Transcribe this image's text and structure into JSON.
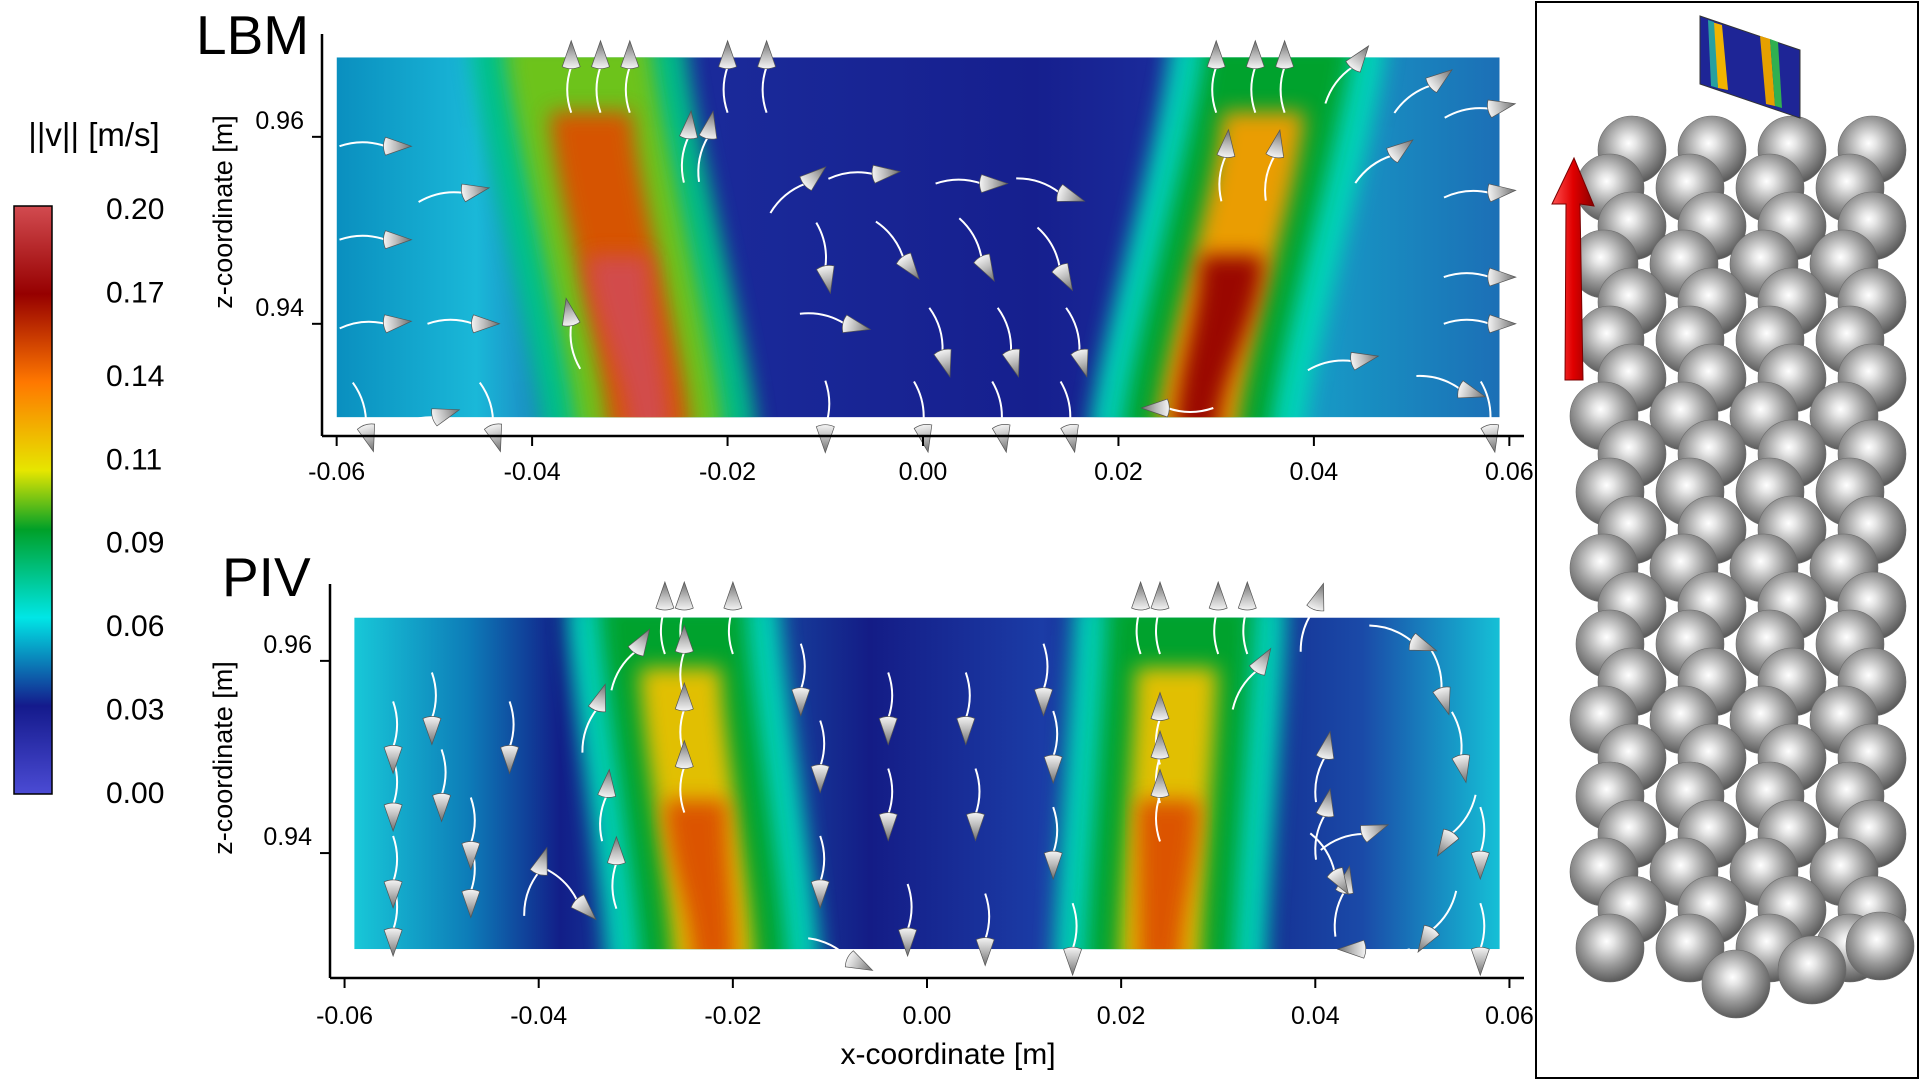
{
  "chart_data": [
    {
      "type": "heatmap",
      "panel_label": "LBM",
      "xlabel": "",
      "ylabel": "z-coordinate [m]",
      "xlim": [
        -0.0615,
        0.0615
      ],
      "ylim": [
        0.928,
        0.971
      ],
      "field_extent": {
        "x": [
          -0.06,
          0.059
        ],
        "z": [
          0.93,
          0.9685
        ]
      },
      "x_ticks": [
        "-0.06",
        "-0.04",
        "-0.02",
        "0.00",
        "0.02",
        "0.04",
        "0.06"
      ],
      "x_tick_values": [
        -0.06,
        -0.04,
        -0.02,
        0.0,
        0.02,
        0.04,
        0.06
      ],
      "y_ticks": [
        "0.94",
        "0.96"
      ],
      "y_tick_values": [
        0.94,
        0.96
      ],
      "background_speed": 0.03,
      "jets": [
        {
          "x_bottom": -0.028,
          "x_top": -0.035,
          "peak_speed": 0.2,
          "halo_speed": 0.1
        },
        {
          "x_bottom": 0.028,
          "x_top": 0.036,
          "peak_speed": 0.17,
          "halo_speed": 0.09
        }
      ],
      "velocity_arrows": [
        {
          "x": -0.036,
          "z": 0.9675,
          "u": 0.0,
          "v": 1.0
        },
        {
          "x": -0.033,
          "z": 0.9675,
          "u": 0.0,
          "v": 1.0
        },
        {
          "x": -0.03,
          "z": 0.9675,
          "u": 0.0,
          "v": 1.0
        },
        {
          "x": -0.024,
          "z": 0.96,
          "u": 0.1,
          "v": 1.0
        },
        {
          "x": -0.022,
          "z": 0.96,
          "u": 0.2,
          "v": 1.0
        },
        {
          "x": -0.02,
          "z": 0.9675,
          "u": 0.0,
          "v": 1.0
        },
        {
          "x": -0.016,
          "z": 0.9675,
          "u": 0.0,
          "v": 1.0
        },
        {
          "x": -0.012,
          "z": 0.955,
          "u": 0.6,
          "v": 0.5
        },
        {
          "x": -0.005,
          "z": 0.956,
          "u": 1.0,
          "v": 0.1
        },
        {
          "x": 0.006,
          "z": 0.955,
          "u": 1.0,
          "v": 0.0
        },
        {
          "x": 0.014,
          "z": 0.954,
          "u": 0.9,
          "v": -0.3
        },
        {
          "x": -0.01,
          "z": 0.946,
          "u": 0.2,
          "v": -1.0
        },
        {
          "x": -0.002,
          "z": 0.947,
          "u": 0.6,
          "v": -0.8
        },
        {
          "x": 0.006,
          "z": 0.947,
          "u": 0.5,
          "v": -0.9
        },
        {
          "x": 0.014,
          "z": 0.946,
          "u": 0.5,
          "v": -0.9
        },
        {
          "x": -0.008,
          "z": 0.94,
          "u": 0.9,
          "v": -0.2
        },
        {
          "x": 0.002,
          "z": 0.937,
          "u": 0.3,
          "v": -1.0
        },
        {
          "x": 0.009,
          "z": 0.937,
          "u": 0.3,
          "v": -1.0
        },
        {
          "x": 0.016,
          "z": 0.937,
          "u": 0.3,
          "v": -1.0
        },
        {
          "x": -0.055,
          "z": 0.959,
          "u": 1.0,
          "v": 0.0
        },
        {
          "x": -0.047,
          "z": 0.954,
          "u": 1.0,
          "v": 0.2
        },
        {
          "x": -0.055,
          "z": 0.949,
          "u": 1.0,
          "v": 0.0
        },
        {
          "x": -0.055,
          "z": 0.94,
          "u": 1.0,
          "v": 0.1
        },
        {
          "x": -0.046,
          "z": 0.94,
          "u": 1.0,
          "v": 0.0
        },
        {
          "x": -0.036,
          "z": 0.94,
          "u": -0.2,
          "v": 1.0
        },
        {
          "x": -0.05,
          "z": 0.93,
          "u": 1.0,
          "v": 0.3
        },
        {
          "x": 0.03,
          "z": 0.9675,
          "u": 0.0,
          "v": 1.0
        },
        {
          "x": 0.034,
          "z": 0.9675,
          "u": 0.0,
          "v": 1.0
        },
        {
          "x": 0.037,
          "z": 0.9675,
          "u": 0.0,
          "v": 1.0
        },
        {
          "x": 0.031,
          "z": 0.958,
          "u": 0.1,
          "v": 1.0
        },
        {
          "x": 0.036,
          "z": 0.958,
          "u": 0.2,
          "v": 1.0
        },
        {
          "x": 0.044,
          "z": 0.9675,
          "u": 0.6,
          "v": 0.8
        },
        {
          "x": 0.052,
          "z": 0.9655,
          "u": 0.8,
          "v": 0.6
        },
        {
          "x": 0.058,
          "z": 0.963,
          "u": 1.0,
          "v": 0.2
        },
        {
          "x": 0.048,
          "z": 0.958,
          "u": 0.8,
          "v": 0.6
        },
        {
          "x": 0.058,
          "z": 0.954,
          "u": 1.0,
          "v": 0.1
        },
        {
          "x": 0.058,
          "z": 0.945,
          "u": 1.0,
          "v": 0.0
        },
        {
          "x": 0.058,
          "z": 0.94,
          "u": 1.0,
          "v": 0.0
        },
        {
          "x": 0.044,
          "z": 0.936,
          "u": 1.0,
          "v": 0.2
        },
        {
          "x": 0.055,
          "z": 0.933,
          "u": 1.0,
          "v": -0.3
        },
        {
          "x": 0.025,
          "z": 0.931,
          "u": -1.0,
          "v": 0.0
        },
        {
          "x": -0.057,
          "z": 0.929,
          "u": 0.3,
          "v": -1.0
        },
        {
          "x": -0.044,
          "z": 0.929,
          "u": 0.3,
          "v": -1.0
        },
        {
          "x": -0.01,
          "z": 0.929,
          "u": 0.0,
          "v": -1.0
        },
        {
          "x": 0.0,
          "z": 0.929,
          "u": 0.2,
          "v": -1.0
        },
        {
          "x": 0.008,
          "z": 0.929,
          "u": 0.2,
          "v": -1.0
        },
        {
          "x": 0.015,
          "z": 0.929,
          "u": 0.2,
          "v": -1.0
        },
        {
          "x": 0.058,
          "z": 0.929,
          "u": 0.2,
          "v": -1.0
        }
      ]
    },
    {
      "type": "heatmap",
      "panel_label": "PIV",
      "xlabel": "x-coordinate [m]",
      "ylabel": "z-coordinate [m]",
      "xlim": [
        -0.0615,
        0.0615
      ],
      "ylim": [
        0.927,
        0.968
      ],
      "field_extent": {
        "x": [
          -0.059,
          0.059
        ],
        "z": [
          0.93,
          0.9645
        ]
      },
      "x_ticks": [
        "-0.06",
        "-0.04",
        "-0.02",
        "0.00",
        "0.02",
        "0.04",
        "0.06"
      ],
      "x_tick_values": [
        -0.06,
        -0.04,
        -0.02,
        0.0,
        0.02,
        0.04,
        0.06
      ],
      "y_ticks": [
        "0.94",
        "0.96"
      ],
      "y_tick_values": [
        0.94,
        0.96
      ],
      "background_speed": 0.03,
      "jets": [
        {
          "x_bottom": -0.022,
          "x_top": -0.026,
          "peak_speed": 0.15,
          "halo_speed": 0.09
        },
        {
          "x_bottom": 0.024,
          "x_top": 0.026,
          "peak_speed": 0.15,
          "halo_speed": 0.09
        }
      ],
      "velocity_arrows": [
        {
          "x": -0.055,
          "z": 0.951,
          "u": 0.0,
          "v": -1.0
        },
        {
          "x": -0.055,
          "z": 0.945,
          "u": 0.0,
          "v": -1.0
        },
        {
          "x": -0.055,
          "z": 0.937,
          "u": 0.0,
          "v": -1.0
        },
        {
          "x": -0.055,
          "z": 0.932,
          "u": 0.0,
          "v": -1.0
        },
        {
          "x": -0.051,
          "z": 0.954,
          "u": 0.0,
          "v": -1.0
        },
        {
          "x": -0.05,
          "z": 0.946,
          "u": 0.0,
          "v": -1.0
        },
        {
          "x": -0.047,
          "z": 0.941,
          "u": 0.0,
          "v": -1.0
        },
        {
          "x": -0.047,
          "z": 0.936,
          "u": 0.0,
          "v": -1.0
        },
        {
          "x": -0.043,
          "z": 0.951,
          "u": 0.0,
          "v": -1.0
        },
        {
          "x": -0.04,
          "z": 0.938,
          "u": 0.3,
          "v": 0.9
        },
        {
          "x": -0.036,
          "z": 0.935,
          "u": 0.5,
          "v": -0.5
        },
        {
          "x": -0.034,
          "z": 0.955,
          "u": 0.3,
          "v": 0.9
        },
        {
          "x": -0.033,
          "z": 0.946,
          "u": 0.1,
          "v": 1.0
        },
        {
          "x": -0.032,
          "z": 0.939,
          "u": 0.0,
          "v": 1.0
        },
        {
          "x": -0.03,
          "z": 0.961,
          "u": 0.5,
          "v": 0.8
        },
        {
          "x": -0.027,
          "z": 0.9655,
          "u": 0.0,
          "v": 1.0
        },
        {
          "x": -0.025,
          "z": 0.9655,
          "u": 0.0,
          "v": 1.0
        },
        {
          "x": -0.025,
          "z": 0.961,
          "u": 0.0,
          "v": 1.0
        },
        {
          "x": -0.025,
          "z": 0.955,
          "u": 0.0,
          "v": 1.0
        },
        {
          "x": -0.025,
          "z": 0.949,
          "u": 0.0,
          "v": 1.0
        },
        {
          "x": -0.02,
          "z": 0.9655,
          "u": 0.0,
          "v": 1.0
        },
        {
          "x": -0.013,
          "z": 0.957,
          "u": 0.0,
          "v": -1.0
        },
        {
          "x": -0.011,
          "z": 0.949,
          "u": 0.0,
          "v": -1.0
        },
        {
          "x": -0.011,
          "z": 0.937,
          "u": 0.0,
          "v": -1.0
        },
        {
          "x": -0.008,
          "z": 0.929,
          "u": 0.6,
          "v": -0.3
        },
        {
          "x": -0.004,
          "z": 0.954,
          "u": 0.0,
          "v": -1.0
        },
        {
          "x": -0.004,
          "z": 0.944,
          "u": 0.0,
          "v": -1.0
        },
        {
          "x": -0.002,
          "z": 0.932,
          "u": 0.0,
          "v": -1.0
        },
        {
          "x": 0.004,
          "z": 0.954,
          "u": 0.0,
          "v": -1.0
        },
        {
          "x": 0.005,
          "z": 0.944,
          "u": 0.0,
          "v": -1.0
        },
        {
          "x": 0.006,
          "z": 0.931,
          "u": 0.0,
          "v": -1.0
        },
        {
          "x": 0.012,
          "z": 0.957,
          "u": 0.0,
          "v": -1.0
        },
        {
          "x": 0.013,
          "z": 0.95,
          "u": 0.0,
          "v": -1.0
        },
        {
          "x": 0.013,
          "z": 0.94,
          "u": 0.0,
          "v": -1.0
        },
        {
          "x": 0.015,
          "z": 0.93,
          "u": 0.0,
          "v": -1.0
        },
        {
          "x": 0.022,
          "z": 0.9655,
          "u": 0.0,
          "v": 1.0
        },
        {
          "x": 0.024,
          "z": 0.9655,
          "u": 0.0,
          "v": 1.0
        },
        {
          "x": 0.024,
          "z": 0.954,
          "u": 0.0,
          "v": 1.0
        },
        {
          "x": 0.024,
          "z": 0.95,
          "u": 0.0,
          "v": 1.0
        },
        {
          "x": 0.024,
          "z": 0.946,
          "u": 0.0,
          "v": 1.0
        },
        {
          "x": 0.03,
          "z": 0.9655,
          "u": 0.0,
          "v": 1.0
        },
        {
          "x": 0.033,
          "z": 0.9655,
          "u": 0.0,
          "v": 1.0
        },
        {
          "x": 0.034,
          "z": 0.959,
          "u": 0.5,
          "v": 0.8
        },
        {
          "x": 0.04,
          "z": 0.9655,
          "u": 0.3,
          "v": 0.9
        },
        {
          "x": 0.041,
          "z": 0.95,
          "u": 0.2,
          "v": 1.0
        },
        {
          "x": 0.041,
          "z": 0.944,
          "u": 0.2,
          "v": 1.0
        },
        {
          "x": 0.043,
          "z": 0.936,
          "u": 0.2,
          "v": 1.0
        },
        {
          "x": 0.045,
          "z": 0.93,
          "u": -1.0,
          "v": 0.0
        },
        {
          "x": 0.05,
          "z": 0.962,
          "u": 0.8,
          "v": -0.3
        },
        {
          "x": 0.053,
          "z": 0.957,
          "u": 0.3,
          "v": -1.0
        },
        {
          "x": 0.055,
          "z": 0.95,
          "u": 0.2,
          "v": -1.0
        },
        {
          "x": 0.054,
          "z": 0.942,
          "u": -0.5,
          "v": -0.8
        },
        {
          "x": 0.052,
          "z": 0.932,
          "u": -0.5,
          "v": -0.8
        },
        {
          "x": 0.057,
          "z": 0.94,
          "u": 0.0,
          "v": -1.0
        },
        {
          "x": 0.057,
          "z": 0.93,
          "u": 0.0,
          "v": -1.0
        },
        {
          "x": 0.045,
          "z": 0.942,
          "u": 0.8,
          "v": 0.3
        },
        {
          "x": 0.042,
          "z": 0.938,
          "u": 0.5,
          "v": -0.8
        }
      ]
    }
  ],
  "colorbar": {
    "title": "||v|| [m/s]",
    "tick_labels": [
      "0.20",
      "0.17",
      "0.14",
      "0.11",
      "0.09",
      "0.06",
      "0.03",
      "0.00"
    ],
    "range": [
      0.0,
      0.2
    ],
    "colormap": [
      {
        "value": 0.0,
        "color": "#4b4bd4"
      },
      {
        "value": 0.03,
        "color": "#141a8c"
      },
      {
        "value": 0.06,
        "color": "#00e6e6"
      },
      {
        "value": 0.09,
        "color": "#00a028"
      },
      {
        "value": 0.11,
        "color": "#e6e600"
      },
      {
        "value": 0.14,
        "color": "#ff7800"
      },
      {
        "value": 0.17,
        "color": "#960000"
      },
      {
        "value": 0.2,
        "color": "#d24b50"
      }
    ]
  },
  "inset": {
    "flow_direction": "up",
    "arrow_color": "#e00000",
    "sphere_color": "#9a9a9a"
  }
}
